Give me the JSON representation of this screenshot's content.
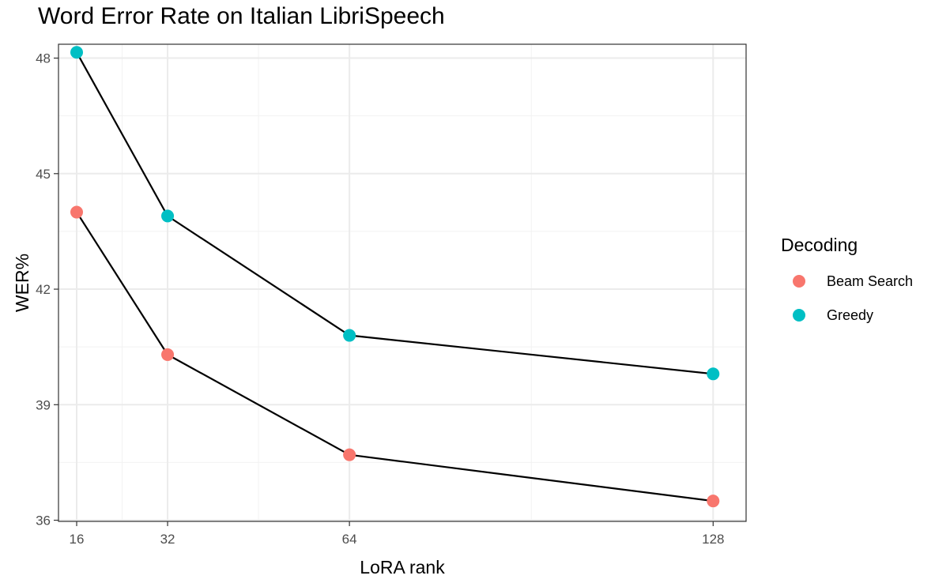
{
  "chart_data": {
    "type": "line",
    "title": "Word Error Rate on Italian LibriSpeech",
    "xlabel": "LoRA rank",
    "ylabel": "WER%",
    "x": [
      16,
      32,
      64,
      128
    ],
    "x_ticks": [
      "16",
      "32",
      "64",
      "128"
    ],
    "xlim": [
      12.8,
      133.8
    ],
    "y_ticks": [
      "36",
      "39",
      "42",
      "45",
      "48"
    ],
    "y_tick_values": [
      36,
      39,
      42,
      45,
      48
    ],
    "ylim": [
      35.97,
      48.36
    ],
    "grid": true,
    "legend": {
      "title": "Decoding",
      "position": "right"
    },
    "series": [
      {
        "name": "Beam Search",
        "color": "#F8766D",
        "values": [
          44.0,
          40.3,
          37.7,
          36.5
        ]
      },
      {
        "name": "Greedy",
        "color": "#00BFC4",
        "values": [
          48.15,
          43.9,
          40.8,
          39.8
        ]
      }
    ]
  }
}
